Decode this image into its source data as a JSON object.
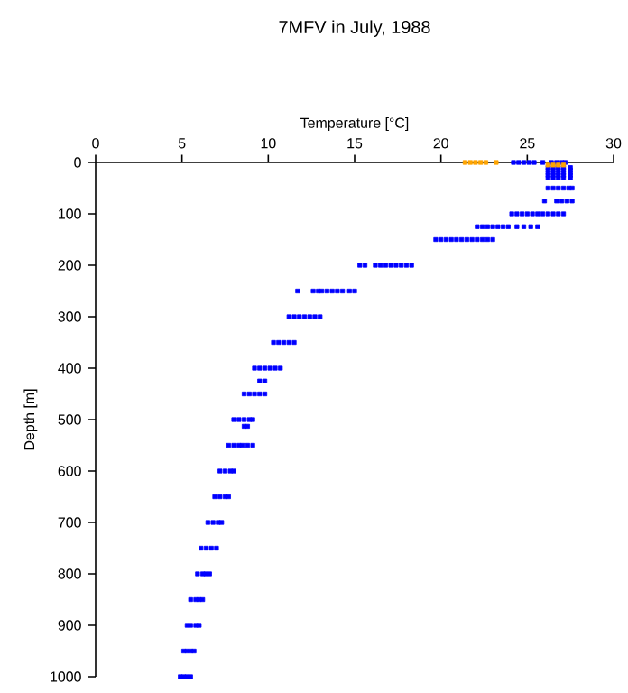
{
  "chart_data": {
    "type": "scatter",
    "title": "7MFV in July, 1988",
    "xlabel": "Temperature [°C]",
    "ylabel": "Depth [m]",
    "xlim": [
      0,
      30
    ],
    "ylim": [
      1000,
      0
    ],
    "xticks": [
      0,
      5,
      10,
      15,
      20,
      25,
      30
    ],
    "yticks": [
      0,
      100,
      200,
      300,
      400,
      500,
      600,
      700,
      800,
      900,
      1000
    ],
    "marker": "square",
    "series": [
      {
        "color": "#0000ff",
        "x": [
          24.2,
          24.5,
          24.8,
          25.1,
          25.4,
          25.9,
          26.4,
          26.7,
          27.0,
          27.2,
          26.2,
          26.5,
          26.8,
          27.1,
          27.5,
          26.2,
          26.5,
          26.8,
          27.1,
          27.5,
          26.2,
          26.5,
          26.8,
          27.1,
          27.5,
          26.2,
          26.5,
          26.8,
          27.1,
          27.5,
          26.2,
          26.5,
          26.8,
          27.1,
          27.5,
          26.2,
          26.5,
          26.8,
          27.1,
          27.4,
          27.6,
          26.0,
          26.7,
          27.0,
          27.3,
          27.6,
          24.1,
          24.4,
          24.7,
          25.0,
          25.3,
          25.6,
          25.9,
          26.2,
          26.5,
          26.8,
          27.1,
          22.1,
          22.4,
          22.7,
          23.0,
          23.3,
          23.6,
          23.9,
          24.4,
          24.8,
          25.2,
          25.6,
          19.7,
          20.0,
          20.3,
          20.6,
          20.9,
          21.2,
          21.5,
          21.8,
          22.1,
          22.4,
          22.7,
          23.0,
          15.3,
          15.6,
          16.2,
          16.5,
          16.8,
          17.1,
          17.4,
          17.7,
          18.0,
          18.3,
          11.7,
          12.6,
          12.9,
          13.1,
          13.4,
          13.7,
          14.0,
          14.3,
          14.7,
          15.0,
          11.2,
          11.5,
          11.8,
          12.1,
          12.4,
          12.7,
          13.0,
          10.3,
          10.6,
          10.9,
          11.2,
          11.5,
          9.2,
          9.5,
          9.8,
          10.1,
          10.4,
          10.7,
          9.5,
          9.8,
          8.6,
          8.9,
          9.2,
          9.5,
          9.8,
          8.0,
          8.3,
          8.6,
          8.9,
          9.1,
          8.6,
          8.8,
          7.7,
          8.0,
          8.3,
          8.5,
          8.8,
          9.1,
          7.2,
          7.5,
          7.8,
          8.0,
          6.9,
          7.2,
          7.5,
          7.7,
          6.5,
          6.8,
          7.1,
          7.3,
          6.1,
          6.4,
          6.7,
          7.0,
          5.9,
          6.2,
          6.4,
          6.6,
          5.5,
          5.8,
          6.0,
          6.2,
          5.3,
          5.5,
          5.8,
          6.0,
          5.1,
          5.3,
          5.5,
          5.7,
          4.9,
          5.1,
          5.3,
          5.5
        ],
        "values": [
          0,
          0,
          0,
          0,
          0,
          0,
          0,
          0,
          0,
          0,
          10,
          10,
          10,
          10,
          10,
          15,
          15,
          15,
          15,
          15,
          20,
          20,
          20,
          20,
          20,
          25,
          25,
          25,
          25,
          25,
          30,
          30,
          30,
          30,
          30,
          50,
          50,
          50,
          50,
          50,
          50,
          75,
          75,
          75,
          75,
          75,
          100,
          100,
          100,
          100,
          100,
          100,
          100,
          100,
          100,
          100,
          100,
          125,
          125,
          125,
          125,
          125,
          125,
          125,
          125,
          125,
          125,
          125,
          150,
          150,
          150,
          150,
          150,
          150,
          150,
          150,
          150,
          150,
          150,
          150,
          200,
          200,
          200,
          200,
          200,
          200,
          200,
          200,
          200,
          200,
          250,
          250,
          250,
          250,
          250,
          250,
          250,
          250,
          250,
          250,
          300,
          300,
          300,
          300,
          300,
          300,
          300,
          350,
          350,
          350,
          350,
          350,
          400,
          400,
          400,
          400,
          400,
          400,
          425,
          425,
          450,
          450,
          450,
          450,
          450,
          500,
          500,
          500,
          500,
          500,
          513,
          513,
          550,
          550,
          550,
          550,
          550,
          550,
          600,
          600,
          600,
          600,
          650,
          650,
          650,
          650,
          700,
          700,
          700,
          700,
          750,
          750,
          750,
          750,
          800,
          800,
          800,
          800,
          850,
          850,
          850,
          850,
          900,
          900,
          900,
          900,
          950,
          950,
          950,
          950,
          1000,
          1000,
          1000,
          1000
        ]
      },
      {
        "color": "#ffa500",
        "x": [
          21.4,
          21.7,
          22.0,
          22.3,
          22.6,
          23.2,
          26.2,
          26.5,
          26.8,
          27.1
        ],
        "values": [
          0,
          0,
          0,
          0,
          0,
          0,
          5,
          5,
          5,
          5
        ]
      }
    ]
  }
}
